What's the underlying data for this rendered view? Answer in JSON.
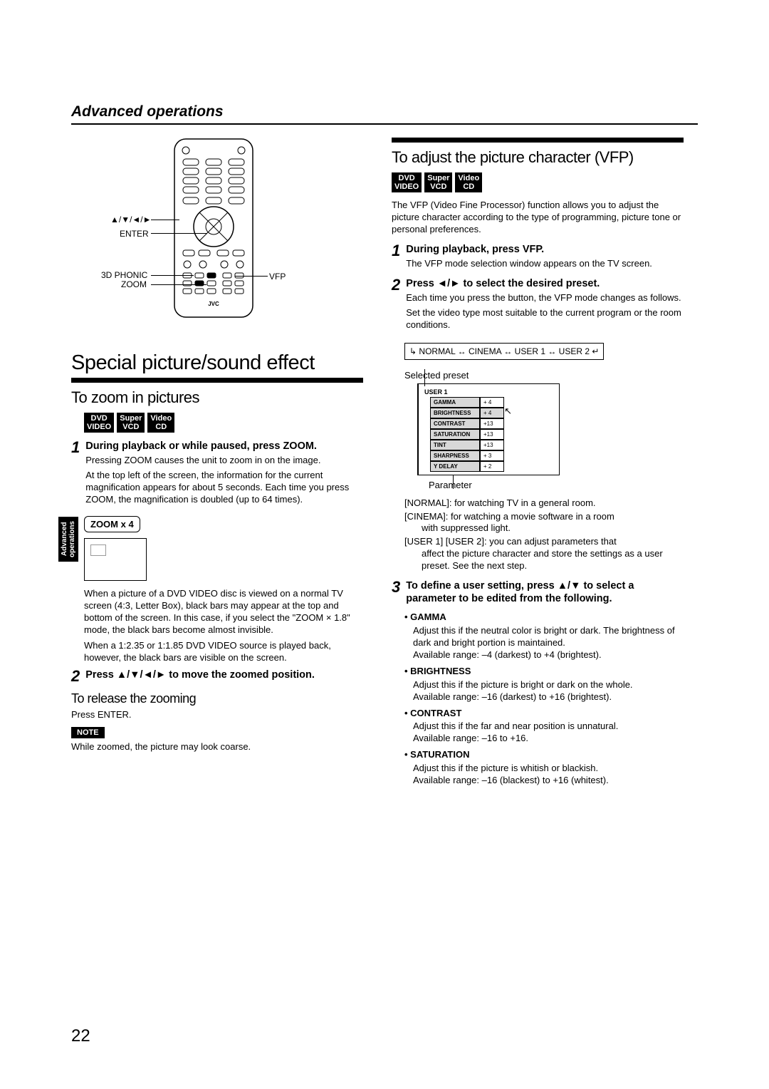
{
  "header": {
    "section": "Advanced operations"
  },
  "sideTab": "Advanced\noperations",
  "pageNumber": "22",
  "remote": {
    "labels": {
      "arrows": "▲/▼/◄/►",
      "enter": "ENTER",
      "phonic": "3D PHONIC",
      "zoom": "ZOOM",
      "vfp": "VFP"
    }
  },
  "left": {
    "h1": "Special picture/sound effect",
    "zoomSection": {
      "title": "To zoom in pictures",
      "badges": [
        "DVD VIDEO",
        "Super VCD",
        "Video CD"
      ],
      "step1": {
        "num": "1",
        "title": "During playback or while paused, press ZOOM.",
        "text1": "Pressing ZOOM causes the unit to zoom in on the image.",
        "text2": "At the top left of the screen, the information for the current magnification appears for about 5 seconds. Each time you press ZOOM, the magnification is doubled (up to 64 times).",
        "zoomBadge": "ZOOM x 4",
        "text3": "When a picture of a DVD VIDEO disc is viewed on a normal TV screen (4:3, Letter Box), black bars may appear at the top and bottom of the screen. In this case, if you select the \"ZOOM × 1.8\" mode, the black bars become almost invisible.",
        "text4": "When a 1:2.35 or 1:1.85 DVD VIDEO source is played back, however, the black bars are visible on the screen."
      },
      "step2": {
        "num": "2",
        "title": "Press ▲/▼/◄/► to move the zoomed position."
      },
      "release": {
        "title": "To release the zooming",
        "text": "Press ENTER."
      },
      "note": {
        "label": "NOTE",
        "text": "While zoomed, the picture may look coarse."
      }
    }
  },
  "right": {
    "vfpSection": {
      "title": "To adjust the picture character (VFP)",
      "badges": [
        "DVD VIDEO",
        "Super VCD",
        "Video CD"
      ],
      "intro": "The VFP (Video Fine Processor) function allows you to adjust the picture character according to the type of programming, picture tone or personal preferences.",
      "step1": {
        "num": "1",
        "title": "During playback, press VFP.",
        "text": "The VFP mode selection window appears on the TV screen."
      },
      "step2": {
        "num": "2",
        "title": "Press ◄/► to select the desired preset.",
        "text1": "Each time you press the button, the VFP mode changes as follows.",
        "text2": "Set the video type most suitable to the current program or the room conditions.",
        "flow": "NORMAL ↔ CINEMA ↔ USER 1 ↔ USER 2",
        "selectedLabel": "Selected preset",
        "panel": {
          "title": "USER 1",
          "rows": [
            {
              "name": "GAMMA",
              "val": "+ 4"
            },
            {
              "name": "BRIGHTNESS",
              "val": "+ 4"
            },
            {
              "name": "CONTRAST",
              "val": "+13"
            },
            {
              "name": "SATURATION",
              "val": "+13"
            },
            {
              "name": "TINT",
              "val": "+13"
            },
            {
              "name": "SHARPNESS",
              "val": "+ 3"
            },
            {
              "name": "Y DELAY",
              "val": "+ 2"
            }
          ]
        },
        "paramLabel": "Parameter",
        "desc": {
          "normal": "[NORMAL]: for watching TV in a general room.",
          "cinema": "[CINEMA]: for watching a movie software in a room with suppressed light.",
          "user": "[USER 1] [USER 2]: you can adjust parameters that affect the picture character and store the settings as a user preset. See the next step."
        }
      },
      "step3": {
        "num": "3",
        "title": "To define a user setting, press ▲/▼ to select a parameter to be edited from the following.",
        "params": [
          {
            "name": "GAMMA",
            "desc": "Adjust this if the neutral color is bright or dark. The brightness of dark and bright portion is maintained.",
            "range": "Available range: –4 (darkest) to +4 (brightest)."
          },
          {
            "name": "BRIGHTNESS",
            "desc": "Adjust this if the picture is bright or dark on the whole.",
            "range": "Available range: –16 (darkest) to +16 (brightest)."
          },
          {
            "name": "CONTRAST",
            "desc": "Adjust this if the far and near position is unnatural.",
            "range": "Available range: –16 to +16."
          },
          {
            "name": "SATURATION",
            "desc": "Adjust this if the picture is whitish or blackish.",
            "range": "Available range: –16 (blackest) to +16 (whitest)."
          }
        ]
      }
    }
  }
}
